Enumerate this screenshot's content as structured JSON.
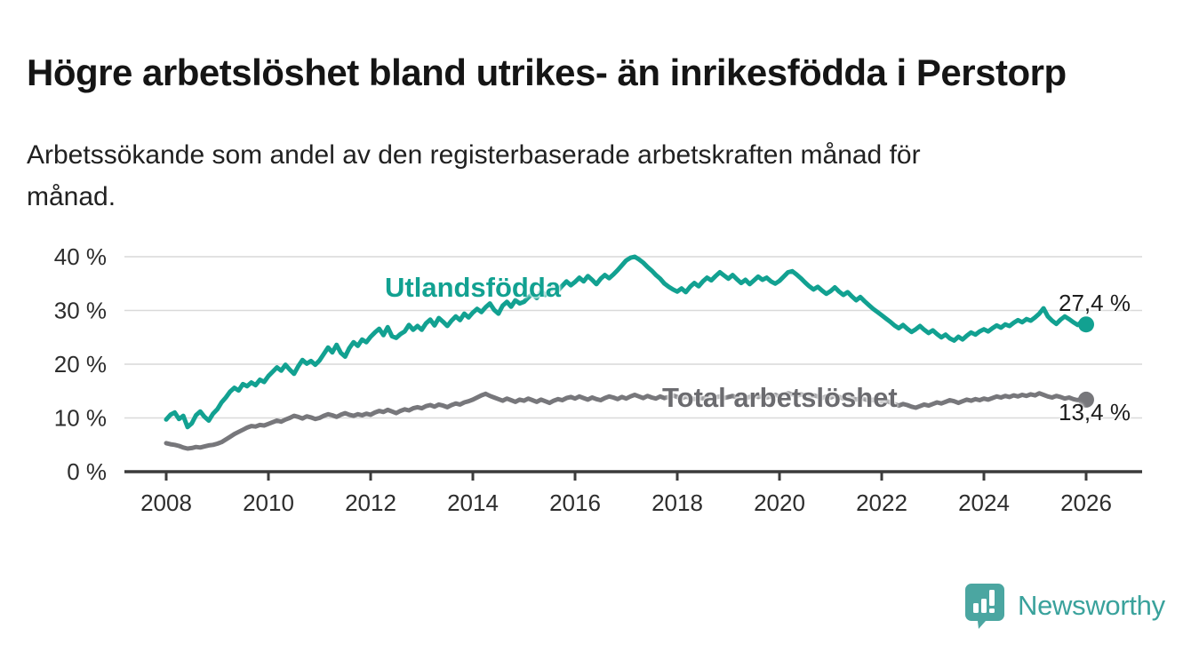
{
  "header": {
    "title": "Högre arbetslöshet bland utrikes- än inrikesfödda i Perstorp",
    "subtitle": "Arbetssökande som andel av den registerbaserade arbetskraften månad för\nmånad."
  },
  "chart_data": {
    "type": "line",
    "x_unit": "month",
    "x_start_year": 2008,
    "x_end": "2026-01",
    "ylim": [
      0,
      43
    ],
    "grid": true,
    "y_ticks": [
      {
        "v": 0,
        "label": "0 %"
      },
      {
        "v": 10,
        "label": "10 %"
      },
      {
        "v": 20,
        "label": "20 %"
      },
      {
        "v": 30,
        "label": "30 %"
      },
      {
        "v": 40,
        "label": "40 %"
      }
    ],
    "x_ticks": [
      {
        "v": 2008,
        "label": "2008"
      },
      {
        "v": 2010,
        "label": "2010"
      },
      {
        "v": 2012,
        "label": "2012"
      },
      {
        "v": 2014,
        "label": "2014"
      },
      {
        "v": 2016,
        "label": "2016"
      },
      {
        "v": 2018,
        "label": "2018"
      },
      {
        "v": 2020,
        "label": "2020"
      },
      {
        "v": 2022,
        "label": "2022"
      },
      {
        "v": 2024,
        "label": "2024"
      },
      {
        "v": 2026,
        "label": "2026"
      }
    ],
    "series": [
      {
        "name": "Utlandsfödda",
        "color": "#12a191",
        "end_value_label": "27,4 %",
        "end_value": 27.4,
        "values": [
          9.7,
          10.6,
          11.0,
          9.8,
          10.4,
          8.3,
          9.0,
          10.5,
          11.2,
          10.2,
          9.5,
          10.8,
          11.6,
          12.9,
          13.8,
          14.9,
          15.6,
          15.1,
          16.3,
          15.9,
          16.6,
          16.1,
          17.1,
          16.7,
          17.8,
          18.6,
          19.4,
          18.8,
          19.9,
          19.0,
          18.2,
          19.6,
          20.8,
          20.1,
          20.6,
          19.9,
          20.7,
          21.9,
          23.1,
          22.2,
          23.6,
          22.1,
          21.4,
          23.0,
          24.1,
          23.4,
          24.6,
          24.1,
          25.1,
          25.9,
          26.6,
          25.4,
          26.9,
          25.2,
          24.9,
          25.6,
          26.1,
          27.3,
          26.4,
          27.1,
          26.4,
          27.6,
          28.3,
          27.2,
          28.6,
          27.9,
          27.1,
          28.1,
          28.9,
          28.2,
          29.4,
          28.7,
          29.6,
          30.3,
          29.7,
          30.6,
          31.3,
          30.1,
          29.4,
          30.9,
          31.6,
          30.7,
          31.9,
          31.3,
          31.6,
          32.4,
          33.1,
          32.3,
          33.6,
          32.9,
          33.5,
          34.3,
          33.7,
          34.6,
          35.4,
          34.7,
          35.3,
          36.1,
          35.4,
          36.4,
          35.7,
          34.9,
          35.9,
          36.6,
          36.0,
          36.7,
          37.5,
          38.4,
          39.3,
          39.8,
          40.0,
          39.5,
          38.9,
          38.1,
          37.4,
          36.6,
          35.9,
          35.0,
          34.4,
          33.9,
          33.5,
          34.1,
          33.4,
          34.4,
          35.1,
          34.5,
          35.4,
          36.1,
          35.6,
          36.4,
          37.1,
          36.5,
          35.9,
          36.6,
          35.8,
          35.1,
          35.7,
          34.9,
          35.6,
          36.3,
          35.7,
          36.1,
          35.4,
          35.0,
          35.5,
          36.3,
          37.1,
          37.3,
          36.7,
          36.0,
          35.2,
          34.5,
          33.9,
          34.4,
          33.7,
          33.1,
          33.6,
          34.3,
          33.5,
          32.9,
          33.4,
          32.6,
          31.9,
          32.5,
          31.7,
          31.0,
          30.3,
          29.7,
          29.1,
          28.5,
          27.9,
          27.2,
          26.7,
          27.3,
          26.6,
          26.0,
          26.5,
          27.1,
          26.4,
          25.8,
          26.3,
          25.6,
          25.0,
          25.5,
          24.8,
          24.4,
          25.1,
          24.6,
          25.3,
          25.9,
          25.5,
          26.1,
          26.5,
          26.1,
          26.7,
          27.2,
          26.8,
          27.4,
          27.1,
          27.7,
          28.2,
          27.8,
          28.4,
          28.1,
          28.7,
          29.4,
          30.4,
          28.9,
          28.1,
          27.5,
          28.3,
          28.9,
          28.4,
          27.8,
          27.3,
          27.9,
          27.4
        ]
      },
      {
        "name": "Total arbetslöshet",
        "color": "#77777b",
        "end_value_label": "13,4 %",
        "end_value": 13.4,
        "values": [
          5.3,
          5.1,
          5.0,
          4.8,
          4.5,
          4.3,
          4.4,
          4.6,
          4.5,
          4.7,
          4.9,
          5.0,
          5.2,
          5.5,
          6.0,
          6.5,
          7.0,
          7.4,
          7.8,
          8.2,
          8.5,
          8.4,
          8.7,
          8.6,
          8.9,
          9.2,
          9.5,
          9.3,
          9.7,
          10.0,
          10.4,
          10.2,
          9.9,
          10.3,
          10.1,
          9.8,
          10.0,
          10.4,
          10.7,
          10.5,
          10.2,
          10.6,
          10.9,
          10.6,
          10.4,
          10.7,
          10.5,
          10.8,
          10.6,
          11.0,
          11.3,
          11.1,
          11.5,
          11.2,
          10.9,
          11.3,
          11.6,
          11.4,
          11.8,
          12.0,
          11.8,
          12.2,
          12.4,
          12.1,
          12.5,
          12.3,
          12.0,
          12.4,
          12.7,
          12.5,
          12.9,
          13.1,
          13.4,
          13.8,
          14.2,
          14.5,
          14.1,
          13.8,
          13.5,
          13.2,
          13.6,
          13.3,
          13.0,
          13.4,
          13.2,
          13.6,
          13.3,
          13.0,
          13.4,
          13.1,
          12.8,
          13.2,
          13.5,
          13.3,
          13.7,
          13.9,
          13.6,
          14.0,
          13.7,
          13.4,
          13.8,
          13.5,
          13.3,
          13.7,
          14.0,
          13.8,
          13.5,
          13.9,
          13.6,
          14.0,
          14.3,
          14.0,
          13.7,
          14.1,
          13.8,
          13.6,
          14.0,
          13.7,
          13.9,
          14.2,
          13.9,
          13.6,
          14.0,
          13.7,
          13.5,
          13.8,
          13.6,
          13.9,
          14.1,
          13.8,
          14.0,
          13.7,
          13.9,
          14.1,
          13.8,
          14.0,
          13.7,
          13.9,
          14.2,
          13.9,
          14.1,
          13.8,
          14.0,
          14.3,
          14.0,
          14.3,
          14.6,
          14.4,
          14.1,
          14.4,
          14.2,
          13.9,
          14.2,
          14.0,
          13.7,
          14.0,
          13.8,
          14.1,
          13.9,
          13.6,
          13.9,
          13.7,
          13.4,
          13.7,
          13.5,
          13.2,
          13.4,
          13.1,
          12.9,
          13.2,
          12.9,
          12.6,
          12.3,
          12.6,
          12.4,
          12.1,
          11.9,
          12.2,
          12.5,
          12.3,
          12.6,
          12.9,
          12.7,
          13.0,
          13.3,
          13.1,
          12.8,
          13.1,
          13.4,
          13.2,
          13.5,
          13.3,
          13.6,
          13.4,
          13.7,
          14.0,
          13.8,
          14.1,
          13.9,
          14.2,
          14.0,
          14.3,
          14.1,
          14.4,
          14.2,
          14.6,
          14.3,
          14.0,
          13.8,
          14.1,
          13.9,
          13.6,
          13.8,
          13.5,
          13.3,
          13.6,
          13.4
        ]
      }
    ],
    "colors": {
      "grid": "#d9d9d9",
      "axis": "#3b3b3b",
      "tick_text": "#2d2d2d"
    }
  },
  "annotations": {
    "series_label_teal": "Utlandsfödda",
    "series_label_gray": "Total arbetslöshet",
    "end_label_teal": "27,4 %",
    "end_label_gray": "13,4 %"
  },
  "footer": {
    "brand": "Newsworthy",
    "brand_color": "#3aa29c",
    "logo_color": "#4ba6a1"
  }
}
